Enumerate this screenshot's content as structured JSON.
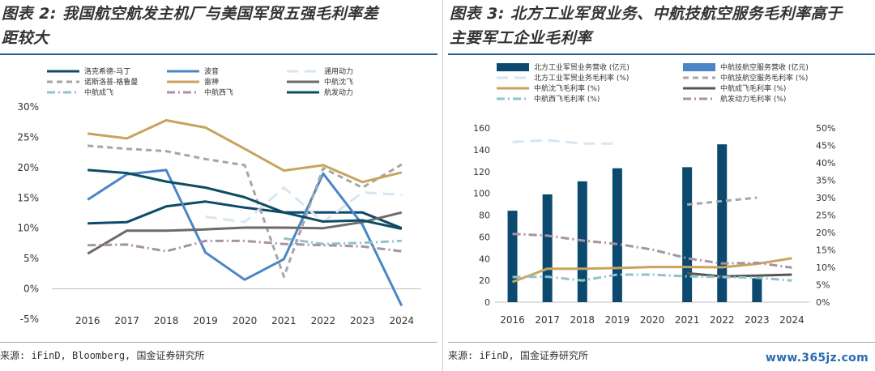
{
  "left": {
    "title": "图表 2: 我国航空航发主机厂与美国军贸五强毛利率差距较大",
    "title_line1": "图表 2: 我国航空航发主机厂与美国军贸五强毛利率差",
    "title_line2": "距较大",
    "source": "来源: iFinD, Bloomberg, 国金证券研究所",
    "legend": [
      {
        "label": "洛克希德-马丁",
        "color": "#0d4a6b",
        "dash": "solid"
      },
      {
        "label": "波音",
        "color": "#4a86c6",
        "dash": "solid"
      },
      {
        "label": "通用动力",
        "color": "#d6e6f2",
        "dash": "longdash"
      },
      {
        "label": "诺斯洛普-格鲁曼",
        "color": "#a6a6a6",
        "dash": "dash"
      },
      {
        "label": "雷神",
        "color": "#c8a35e",
        "dash": "solid"
      },
      {
        "label": "中航沈飞",
        "color": "#6e6a6a",
        "dash": "solid"
      },
      {
        "label": "中航成飞",
        "color": "#8fc4c9",
        "dash": "dashdot"
      },
      {
        "label": "中航西飞",
        "color": "#a893a3",
        "dash": "dashdot"
      },
      {
        "label": "航发动力",
        "color": "#0b4d63",
        "dash": "solid"
      }
    ]
  },
  "right": {
    "title_line1": "图表 3: 北方工业军贸业务、中航技航空服务毛利率高于",
    "title_line2": "主要军工企业毛利率",
    "source": "来源: iFinD, 国金证券研究所",
    "legend": [
      {
        "label": "北方工业军贸业务营收 (亿元)",
        "color": "#0b4a6e",
        "kind": "bar"
      },
      {
        "label": "中航技航空服务营收 (亿元)",
        "color": "#4a86c6",
        "kind": "bar"
      },
      {
        "label": "北方工业军贸业务毛利率 (%)",
        "color": "#d6e6f2",
        "kind": "line",
        "dash": "longdash"
      },
      {
        "label": "中航技航空服务毛利率 (%)",
        "color": "#a6a6a6",
        "kind": "line",
        "dash": "dash"
      },
      {
        "label": "中航沈飞毛利率 (%)",
        "color": "#c8a35e",
        "kind": "line",
        "dash": "solid"
      },
      {
        "label": "中航成飞毛利率 (%)",
        "color": "#555555",
        "kind": "line",
        "dash": "solid"
      },
      {
        "label": "中航西飞毛利率 (%)",
        "color": "#8fc4c9",
        "kind": "line",
        "dash": "dashdot"
      },
      {
        "label": "航发动力毛利率 (%)",
        "color": "#a893a3",
        "kind": "line",
        "dash": "dashdot"
      }
    ]
  },
  "watermark": "www.365jz.com",
  "chart_data": [
    {
      "type": "line",
      "x": [
        "2016",
        "2017",
        "2018",
        "2019",
        "2020",
        "2021",
        "2022",
        "2023",
        "2024"
      ],
      "ylim": [
        -5,
        30
      ],
      "yticks": [
        "-5%",
        "0%",
        "5%",
        "10%",
        "15%",
        "20%",
        "25%",
        "30%"
      ],
      "grid": false,
      "legend_position": "top",
      "series": [
        {
          "name": "洛克希德-马丁",
          "values": [
            10.8,
            11.0,
            13.6,
            14.4,
            13.4,
            12.6,
            12.6,
            12.6,
            10.0
          ]
        },
        {
          "name": "波音",
          "values": [
            14.7,
            18.9,
            19.6,
            6.0,
            1.5,
            4.9,
            19.0,
            10.6,
            -2.8
          ]
        },
        {
          "name": "通用动力",
          "values": [
            null,
            null,
            null,
            11.9,
            11.0,
            16.7,
            11.0,
            15.9,
            15.5
          ]
        },
        {
          "name": "诺斯洛普-格鲁曼",
          "values": [
            23.6,
            23.1,
            22.7,
            21.4,
            20.4,
            2.0,
            19.9,
            16.7,
            20.5
          ]
        },
        {
          "name": "雷神",
          "values": [
            25.6,
            24.8,
            27.8,
            26.6,
            23.1,
            19.5,
            20.4,
            17.6,
            19.2
          ]
        },
        {
          "name": "中航沈飞",
          "values": [
            5.8,
            9.6,
            9.6,
            9.8,
            10.1,
            10.1,
            10.0,
            11.0,
            12.6
          ]
        },
        {
          "name": "中航成飞",
          "values": [
            null,
            null,
            null,
            null,
            null,
            8.3,
            7.4,
            7.6,
            7.9
          ]
        },
        {
          "name": "中航西飞",
          "values": [
            7.2,
            7.3,
            6.2,
            7.9,
            7.9,
            7.4,
            7.2,
            7.0,
            6.2
          ]
        },
        {
          "name": "航发动力",
          "values": [
            19.6,
            19.1,
            17.7,
            16.7,
            15.1,
            12.6,
            11.1,
            11.3,
            9.9
          ]
        }
      ]
    },
    {
      "type": "bar",
      "x": [
        "2016",
        "2017",
        "2018",
        "2019",
        "2020",
        "2021",
        "2022",
        "2023",
        "2024"
      ],
      "ylim_left": [
        0,
        160
      ],
      "ylim_right": [
        0,
        50
      ],
      "yticks_left": [
        "0",
        "20",
        "40",
        "60",
        "80",
        "100",
        "120",
        "140",
        "160"
      ],
      "yticks_right": [
        "0%",
        "5%",
        "10%",
        "15%",
        "20%",
        "25%",
        "30%",
        "35%",
        "40%",
        "45%",
        "50%"
      ],
      "grid": false,
      "legend_position": "top",
      "bars": [
        {
          "name": "北方工业军贸业务营收 (亿元)",
          "values": [
            84,
            99,
            111,
            123,
            null,
            124,
            145,
            22,
            null
          ]
        }
      ],
      "lines": [
        {
          "name": "北方工业军贸业务毛利率 (%)",
          "values": [
            46,
            46.5,
            45.5,
            45.5,
            null,
            null,
            null,
            null,
            null
          ]
        },
        {
          "name": "中航技航空服务毛利率 (%)",
          "values": [
            null,
            null,
            null,
            null,
            null,
            28,
            29,
            30,
            null
          ]
        },
        {
          "name": "中航沈飞毛利率 (%)",
          "values": [
            5.8,
            9.6,
            9.6,
            9.8,
            10.1,
            10.1,
            10.0,
            11.0,
            12.6
          ]
        },
        {
          "name": "中航成飞毛利率 (%)",
          "values": [
            null,
            null,
            null,
            null,
            null,
            8.3,
            7.4,
            7.6,
            7.9
          ]
        },
        {
          "name": "中航西飞毛利率 (%)",
          "values": [
            7.2,
            7.3,
            6.2,
            7.9,
            7.9,
            7.4,
            7.2,
            7.0,
            6.2
          ]
        },
        {
          "name": "航发动力毛利率 (%)",
          "values": [
            19.6,
            19.1,
            17.7,
            16.7,
            15.1,
            12.6,
            11.1,
            11.3,
            9.9
          ]
        }
      ]
    }
  ]
}
